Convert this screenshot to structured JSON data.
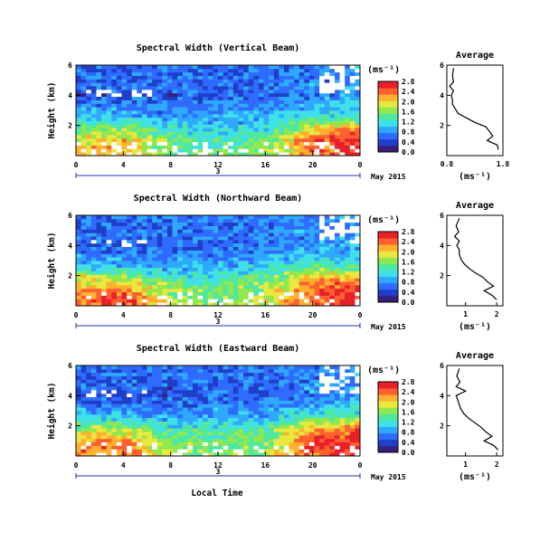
{
  "figure": {
    "xlabel": "Local Time",
    "date_label": "May 2015",
    "colorbar_unit": "(ms⁻¹)",
    "avg_title": "Average",
    "avg_xlabel": "(ms⁻¹)",
    "ylabel": "Height (km)"
  },
  "colors": {
    "colormap": [
      "#3a1f7a",
      "#1f3fc8",
      "#2f6bff",
      "#2fa8ff",
      "#3fe0e8",
      "#4fe8a0",
      "#8fe84f",
      "#e8e83f",
      "#ffb02f",
      "#ff602f",
      "#e8202a"
    ],
    "missing": "#ffffff"
  },
  "chart_data": [
    {
      "type": "heatmap",
      "title": "Spectral Width (Vertical Beam)",
      "ylabel": "Height (km)",
      "xlabel": "Local Time",
      "x_range": [
        0,
        24
      ],
      "x_ticks": [
        "0",
        "4",
        "8",
        "12",
        "16",
        "20",
        "0"
      ],
      "y_range": [
        0,
        6
      ],
      "y_ticks": [
        "2",
        "4",
        "6"
      ],
      "day_label": "3",
      "colorbar": {
        "range": [
          0,
          2.8
        ],
        "ticks": [
          "0.0",
          "0.4",
          "0.8",
          "1.2",
          "1.6",
          "2.0",
          "2.4",
          "2.8"
        ]
      },
      "height_profile_km": [
        0.5,
        1.0,
        1.5,
        2.0,
        2.5,
        3.0,
        3.5,
        4.0,
        4.5,
        5.0,
        5.5,
        6.0
      ],
      "time_profile_h": [
        0,
        4,
        8,
        12,
        16,
        20,
        24
      ],
      "values": [
        [
          2.0,
          2.2,
          1.5,
          1.4,
          1.6,
          2.3,
          2.6
        ],
        [
          1.9,
          2.1,
          1.5,
          1.3,
          1.5,
          2.4,
          2.7
        ],
        [
          1.6,
          1.7,
          1.3,
          1.2,
          1.3,
          2.2,
          2.5
        ],
        [
          1.4,
          1.5,
          1.1,
          1.0,
          1.1,
          1.8,
          2.0
        ],
        [
          1.0,
          1.1,
          0.8,
          0.9,
          1.0,
          1.3,
          1.2
        ],
        [
          0.9,
          0.8,
          0.7,
          0.8,
          0.8,
          1.0,
          1.1
        ],
        [
          0.7,
          0.7,
          0.6,
          0.7,
          0.7,
          0.9,
          1.0
        ],
        [
          0.4,
          0.5,
          0.5,
          0.6,
          0.6,
          0.7,
          0.8
        ],
        [
          0.7,
          0.6,
          0.6,
          0.6,
          0.7,
          0.8,
          0.9
        ],
        [
          0.6,
          0.6,
          0.6,
          0.6,
          0.6,
          0.7,
          0.8
        ],
        [
          0.6,
          0.6,
          0.6,
          0.6,
          0.6,
          0.7,
          0.8
        ],
        [
          0.6,
          0.6,
          0.6,
          0.6,
          0.6,
          0.7,
          0.8
        ]
      ],
      "average": {
        "title": "Average",
        "xlabel": "(ms⁻¹)",
        "x_range": [
          0.8,
          1.8
        ],
        "x_ticks": [
          "0.8",
          "1.8"
        ],
        "y_range": [
          0,
          6
        ],
        "y_ticks": [
          "2",
          "4",
          "6"
        ],
        "x": [
          1.72,
          1.7,
          1.52,
          1.62,
          1.56,
          1.5,
          1.3,
          1.15,
          1.0,
          0.95,
          0.9,
          0.9,
          0.88,
          0.92,
          0.85,
          0.92,
          0.9,
          0.92
        ],
        "y": [
          0.4,
          0.7,
          1.0,
          1.3,
          1.6,
          1.9,
          2.2,
          2.5,
          2.8,
          3.1,
          3.4,
          3.7,
          4.0,
          4.3,
          4.6,
          4.9,
          5.3,
          5.8
        ]
      }
    },
    {
      "type": "heatmap",
      "title": "Spectral Width (Northward Beam)",
      "ylabel": "Height (km)",
      "xlabel": "Local Time",
      "x_range": [
        0,
        24
      ],
      "x_ticks": [
        "0",
        "4",
        "8",
        "12",
        "16",
        "20",
        "0"
      ],
      "y_range": [
        0,
        6
      ],
      "y_ticks": [
        "2",
        "4",
        "6"
      ],
      "day_label": "3",
      "colorbar": {
        "range": [
          0,
          2.8
        ],
        "ticks": [
          "0.0",
          "0.4",
          "0.8",
          "1.2",
          "1.6",
          "2.0",
          "2.4",
          "2.8"
        ]
      },
      "height_profile_km": [
        0.5,
        1.0,
        1.5,
        2.0,
        2.5,
        3.0,
        3.5,
        4.0,
        4.5,
        5.0,
        5.5,
        6.0
      ],
      "time_profile_h": [
        0,
        4,
        8,
        12,
        16,
        20,
        24
      ],
      "values": [
        [
          2.4,
          2.5,
          1.8,
          1.6,
          1.8,
          2.5,
          2.7
        ],
        [
          2.2,
          2.3,
          1.7,
          1.5,
          1.7,
          2.4,
          2.6
        ],
        [
          2.0,
          2.0,
          1.5,
          1.4,
          1.6,
          2.3,
          2.4
        ],
        [
          1.8,
          1.6,
          1.2,
          1.2,
          1.4,
          2.0,
          2.1
        ],
        [
          1.2,
          1.1,
          0.9,
          1.0,
          1.1,
          1.5,
          1.4
        ],
        [
          0.9,
          0.8,
          0.8,
          0.8,
          0.9,
          1.1,
          1.2
        ],
        [
          0.7,
          0.7,
          0.7,
          0.7,
          0.8,
          1.0,
          1.0
        ],
        [
          0.5,
          0.6,
          0.5,
          0.6,
          0.7,
          0.8,
          0.9
        ],
        [
          0.7,
          0.6,
          0.6,
          0.6,
          0.7,
          0.8,
          0.9
        ],
        [
          0.6,
          0.6,
          0.6,
          0.6,
          0.7,
          0.8,
          0.8
        ],
        [
          0.6,
          0.6,
          0.6,
          0.6,
          0.7,
          0.8,
          0.8
        ],
        [
          0.7,
          0.7,
          0.7,
          0.7,
          0.7,
          0.8,
          0.8
        ]
      ],
      "average": {
        "title": "Average",
        "xlabel": "(ms⁻¹)",
        "x_range": [
          0.4,
          2.2
        ],
        "x_ticks": [
          "1",
          "2"
        ],
        "y_range": [
          0,
          6
        ],
        "y_ticks": [
          "2",
          "4",
          "6"
        ],
        "x": [
          2.0,
          1.85,
          1.6,
          1.9,
          1.7,
          1.55,
          1.3,
          1.1,
          0.95,
          0.85,
          0.8,
          0.8,
          0.72,
          0.8,
          0.65,
          0.78,
          0.7,
          0.8
        ],
        "y": [
          0.4,
          0.7,
          1.0,
          1.3,
          1.6,
          1.9,
          2.2,
          2.5,
          2.8,
          3.1,
          3.4,
          3.7,
          4.0,
          4.3,
          4.6,
          4.9,
          5.3,
          5.8
        ]
      }
    },
    {
      "type": "heatmap",
      "title": "Spectral Width (Eastward Beam)",
      "ylabel": "Height (km)",
      "xlabel": "Local Time",
      "x_range": [
        0,
        24
      ],
      "x_ticks": [
        "0",
        "4",
        "8",
        "12",
        "16",
        "20",
        "0"
      ],
      "y_range": [
        0,
        6
      ],
      "y_ticks": [
        "2",
        "4",
        "6"
      ],
      "day_label": "3",
      "colorbar": {
        "range": [
          0,
          2.8
        ],
        "ticks": [
          "0.0",
          "0.4",
          "0.8",
          "1.2",
          "1.6",
          "2.0",
          "2.4",
          "2.8"
        ]
      },
      "height_profile_km": [
        0.5,
        1.0,
        1.5,
        2.0,
        2.5,
        3.0,
        3.5,
        4.0,
        4.5,
        5.0,
        5.5,
        6.0
      ],
      "time_profile_h": [
        0,
        4,
        8,
        12,
        16,
        20,
        24
      ],
      "values": [
        [
          2.3,
          2.4,
          1.7,
          1.6,
          1.7,
          2.5,
          2.6
        ],
        [
          2.2,
          2.3,
          1.6,
          1.5,
          1.6,
          2.5,
          2.7
        ],
        [
          1.9,
          1.9,
          1.4,
          1.4,
          1.5,
          2.3,
          2.5
        ],
        [
          1.6,
          1.6,
          1.2,
          1.2,
          1.3,
          2.0,
          2.2
        ],
        [
          1.1,
          1.1,
          0.9,
          1.0,
          1.0,
          1.5,
          1.5
        ],
        [
          0.9,
          0.8,
          0.7,
          0.8,
          0.8,
          1.1,
          1.2
        ],
        [
          0.7,
          0.7,
          0.6,
          0.7,
          0.7,
          0.9,
          1.0
        ],
        [
          0.4,
          0.5,
          0.5,
          0.6,
          0.6,
          0.7,
          0.8
        ],
        [
          0.7,
          0.6,
          0.5,
          0.6,
          0.6,
          0.8,
          0.9
        ],
        [
          0.6,
          0.6,
          0.6,
          0.6,
          0.6,
          0.7,
          0.8
        ],
        [
          0.6,
          0.6,
          0.6,
          0.6,
          0.6,
          0.7,
          0.8
        ],
        [
          0.6,
          0.6,
          0.6,
          0.6,
          0.6,
          0.7,
          0.8
        ]
      ],
      "average": {
        "title": "Average",
        "xlabel": "(ms⁻¹)",
        "x_range": [
          0.4,
          2.2
        ],
        "x_ticks": [
          "1",
          "2"
        ],
        "y_range": [
          0,
          6
        ],
        "y_ticks": [
          "2",
          "4",
          "6"
        ],
        "x": [
          2.05,
          1.9,
          1.6,
          1.85,
          1.65,
          1.5,
          1.3,
          1.1,
          0.95,
          0.85,
          0.8,
          0.75,
          0.7,
          1.0,
          0.7,
          0.82,
          0.72,
          0.8
        ],
        "y": [
          0.4,
          0.7,
          1.0,
          1.3,
          1.6,
          1.9,
          2.2,
          2.5,
          2.8,
          3.1,
          3.4,
          3.7,
          4.0,
          4.3,
          4.6,
          4.9,
          5.3,
          5.8
        ]
      }
    }
  ]
}
